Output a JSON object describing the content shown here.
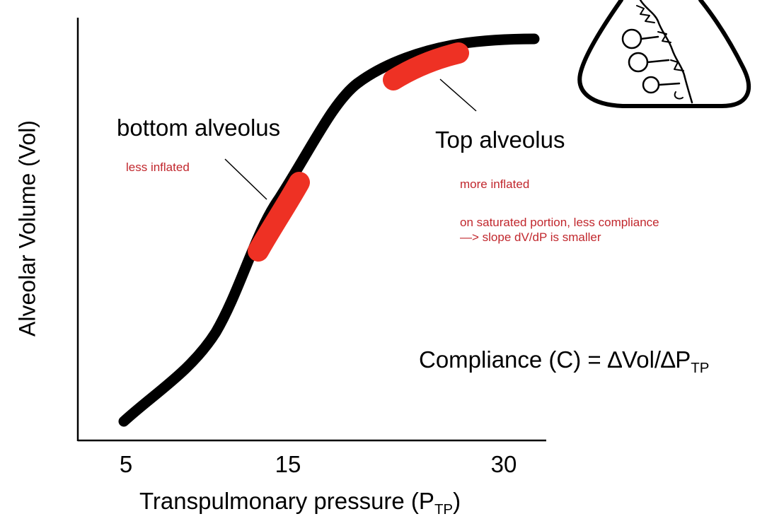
{
  "axes": {
    "y_label": "Alveolar Volume (Vol)",
    "x_label": {
      "text": "Transpulmonary pressure (P",
      "sub": "TP",
      "close": ")"
    },
    "x_ticks": [
      "5",
      "15",
      "30"
    ]
  },
  "labels": {
    "bottom": {
      "title": "bottom alveolus",
      "note": "less inflated"
    },
    "top": {
      "title": "Top alveolus",
      "note1": "more inflated",
      "note2_line1": "on saturated portion, less compliance",
      "note2_line2": "—> slope dV/dP is smaller"
    }
  },
  "formula": {
    "text": "Compliance (C) = ∆Vol/∆P",
    "sub": "TP"
  },
  "colors": {
    "curve": "#000000",
    "highlight": "#ee3124",
    "note": "#c1272d"
  },
  "icons": [
    "lung-sketch-icon"
  ]
}
